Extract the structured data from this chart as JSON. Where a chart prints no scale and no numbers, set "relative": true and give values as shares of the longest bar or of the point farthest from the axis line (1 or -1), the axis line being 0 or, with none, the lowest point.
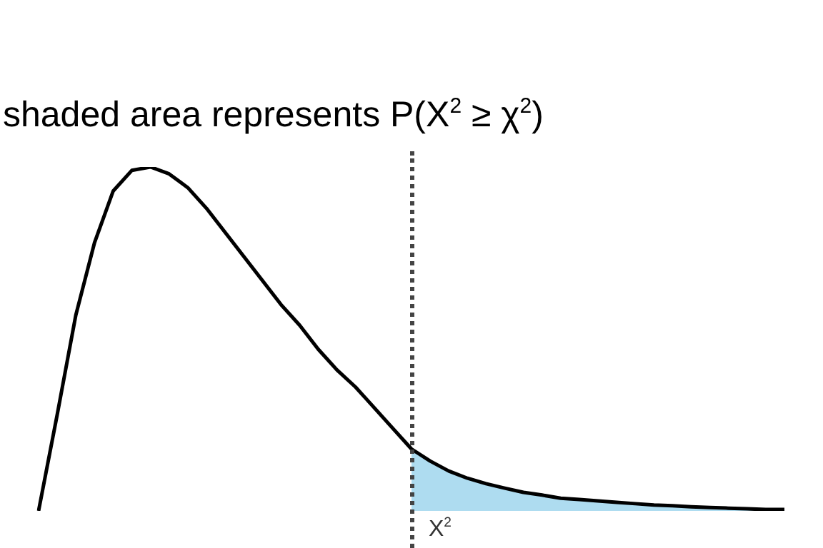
{
  "chart_data": {
    "type": "line",
    "title": "shaded area represents  P(X$^{2}$ ≥ χ$^{2}$)",
    "categories": [
      null,
      null,
      null,
      null,
      null,
      null,
      null,
      null,
      null,
      null,
      null,
      null,
      null,
      null,
      null,
      null,
      null,
      null,
      null,
      null,
      null,
      null,
      null,
      null,
      null,
      null,
      null,
      null,
      null,
      null,
      null,
      null,
      null,
      null,
      null,
      null,
      null,
      null,
      null,
      null,
      null
    ],
    "relative": true,
    "marker": "none",
    "series": [
      {
        "color": "#000000",
        "values": [
          0,
          0.28,
          0.57,
          0.78,
          0.93,
          0.99,
          1,
          0.98,
          0.94,
          0.88,
          0.81,
          0.74,
          0.67,
          0.6,
          0.54,
          0.47,
          0.41,
          0.36,
          0.3,
          0.24,
          0.18,
          0.145,
          0.116,
          0.095,
          0.079,
          0.066,
          0.054,
          0.046,
          0.037,
          0.033,
          0.029,
          0.025,
          0.021,
          0.017,
          0.015,
          0.012,
          0.01,
          0.008,
          0.006,
          0.004,
          0.004
        ]
      },
      {
        "type": "area",
        "color": "#aedcf0",
        "values": [
          null,
          null,
          null,
          null,
          null,
          null,
          null,
          null,
          null,
          null,
          null,
          null,
          null,
          null,
          null,
          null,
          null,
          null,
          null,
          null,
          0.18,
          0.145,
          0.116,
          0.095,
          0.079,
          0.066,
          0.054,
          0.046,
          0.037,
          0.033,
          0.029,
          0.025,
          0.021,
          0.017,
          0.015,
          0.012,
          0.01,
          0.008,
          0.006,
          0.004,
          0.004
        ]
      }
    ],
    "annotations": [
      "X$^{2}$"
    ]
  }
}
